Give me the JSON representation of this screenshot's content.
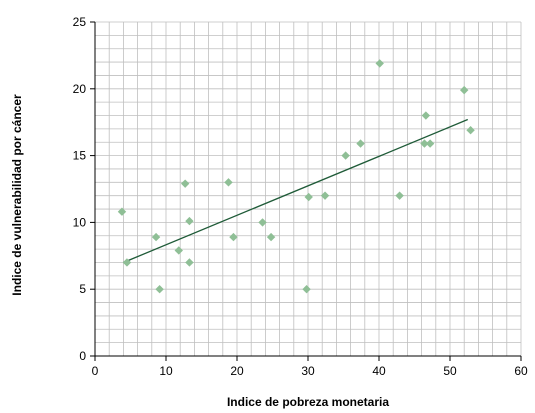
{
  "chart_data": {
    "type": "scatter",
    "title": "",
    "xlabel": "Indice de pobreza monetaria",
    "ylabel": "Indice de vulnerabilidad por cáncer",
    "xlim": [
      0,
      60
    ],
    "ylim": [
      0,
      25
    ],
    "x_ticks": [
      0,
      10,
      20,
      30,
      40,
      50,
      60
    ],
    "y_ticks": [
      0,
      5,
      10,
      15,
      20,
      25
    ],
    "x_tick_labels": [
      "0",
      "10",
      "20",
      "30",
      "40",
      "50",
      "60"
    ],
    "y_tick_labels": [
      "0",
      "5",
      "10",
      "15",
      "20",
      "25"
    ],
    "grid": true,
    "grid_minor_x_step": 2,
    "grid_minor_y_step": 1,
    "points": [
      {
        "x": 3.8,
        "y": 10.8
      },
      {
        "x": 4.5,
        "y": 7.0
      },
      {
        "x": 8.6,
        "y": 8.9
      },
      {
        "x": 9.1,
        "y": 5.0
      },
      {
        "x": 11.8,
        "y": 7.9
      },
      {
        "x": 12.7,
        "y": 12.9
      },
      {
        "x": 13.3,
        "y": 10.1
      },
      {
        "x": 13.3,
        "y": 7.0
      },
      {
        "x": 18.8,
        "y": 13.0
      },
      {
        "x": 19.5,
        "y": 8.9
      },
      {
        "x": 23.6,
        "y": 10.0
      },
      {
        "x": 24.8,
        "y": 8.9
      },
      {
        "x": 29.8,
        "y": 5.0
      },
      {
        "x": 30.1,
        "y": 11.9
      },
      {
        "x": 32.4,
        "y": 12.0
      },
      {
        "x": 35.3,
        "y": 15.0
      },
      {
        "x": 37.4,
        "y": 15.9
      },
      {
        "x": 40.1,
        "y": 21.9
      },
      {
        "x": 42.9,
        "y": 12.0
      },
      {
        "x": 46.4,
        "y": 15.9
      },
      {
        "x": 46.6,
        "y": 18.0
      },
      {
        "x": 47.2,
        "y": 15.9
      },
      {
        "x": 52.0,
        "y": 19.9
      },
      {
        "x": 52.9,
        "y": 16.9
      }
    ],
    "trendline": {
      "x": [
        4.0,
        52.5
      ],
      "y": [
        7.0,
        17.7
      ]
    },
    "colors": {
      "marker": "#8fbf96",
      "trendline": "#1f5b38",
      "grid": "#bfbfbf",
      "axis": "#000000"
    }
  }
}
